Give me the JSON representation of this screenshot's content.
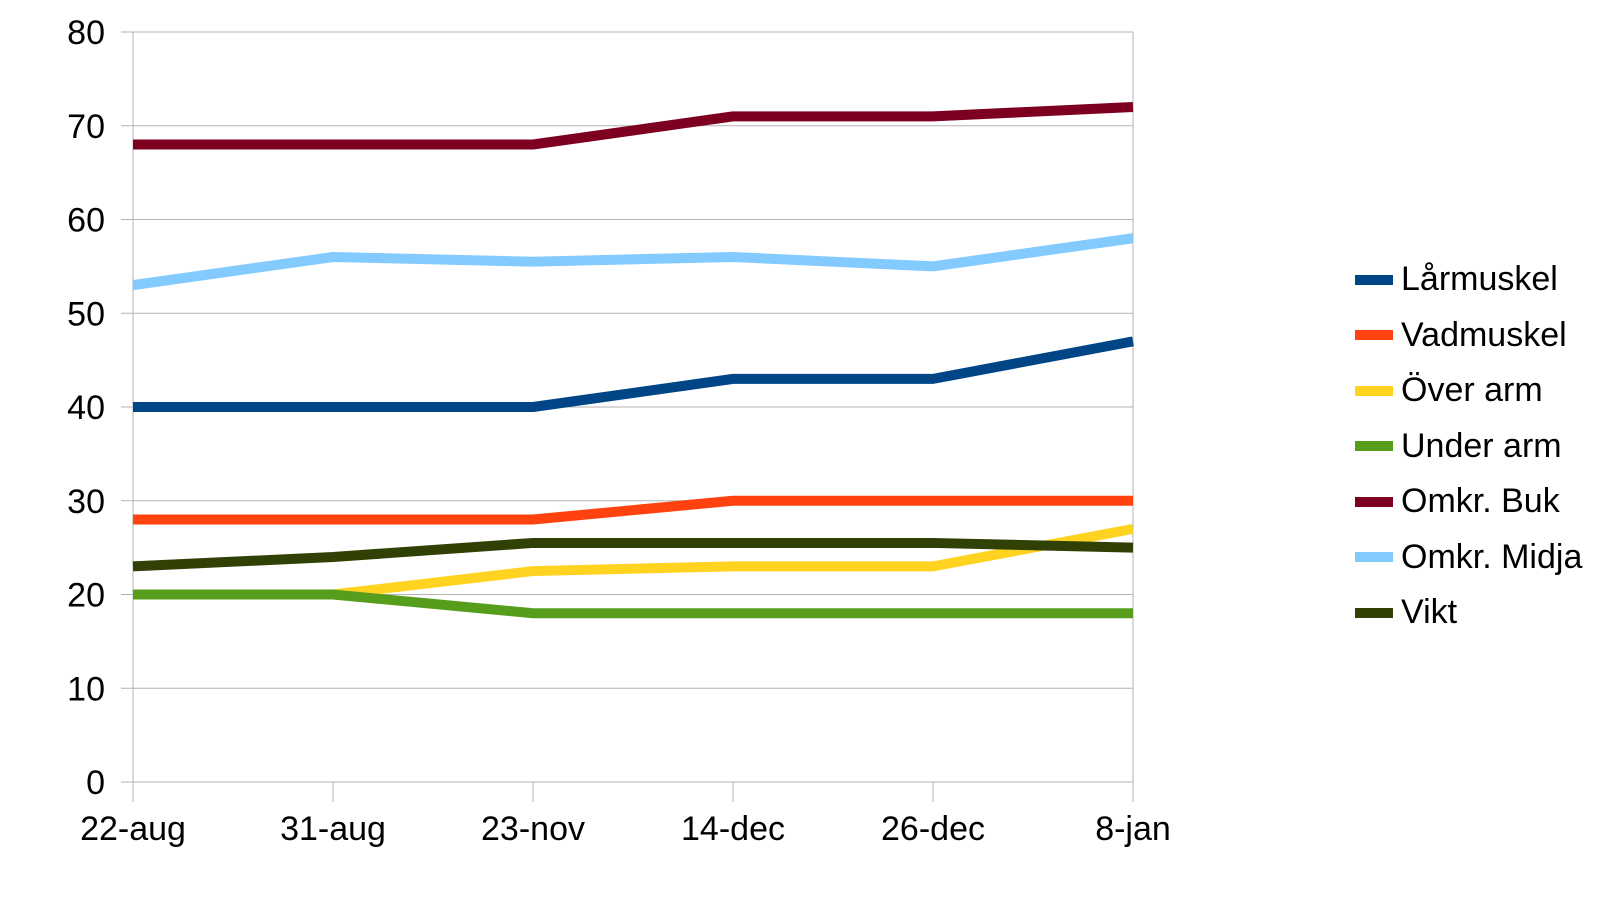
{
  "chart_data": {
    "type": "line",
    "categories": [
      "22-aug",
      "31-aug",
      "23-nov",
      "14-dec",
      "26-dec",
      "8-jan"
    ],
    "ylim": [
      0,
      80
    ],
    "yticks": [
      "0",
      "10",
      "20",
      "30",
      "40",
      "50",
      "60",
      "70",
      "80"
    ],
    "grid": true,
    "legend_position": "right",
    "series": [
      {
        "name": "Lårmuskel",
        "color": "#004586",
        "values": [
          40,
          40,
          40,
          43,
          43,
          47
        ]
      },
      {
        "name": "Vadmuskel",
        "color": "#ff420e",
        "values": [
          28,
          28,
          28,
          30,
          30,
          30
        ]
      },
      {
        "name": "Över arm",
        "color": "#ffd320",
        "values": [
          20,
          20,
          22.5,
          23,
          23,
          27
        ]
      },
      {
        "name": "Under arm",
        "color": "#579d1c",
        "values": [
          20,
          20,
          18,
          18,
          18,
          18
        ]
      },
      {
        "name": "Omkr. Buk",
        "color": "#7e0021",
        "values": [
          68,
          68,
          68,
          71,
          71,
          72
        ]
      },
      {
        "name": "Omkr. Midja",
        "color": "#83caff",
        "values": [
          53,
          56,
          55.5,
          56,
          55,
          58
        ]
      },
      {
        "name": "Vikt",
        "color": "#314004",
        "values": [
          23,
          24,
          25.5,
          25.5,
          25.5,
          25
        ]
      }
    ]
  }
}
